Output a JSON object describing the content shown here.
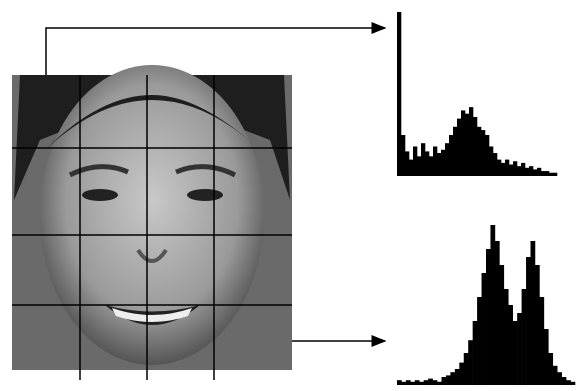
{
  "chart_data": [
    {
      "type": "histogram",
      "color": "#000000",
      "values": [
        100,
        25,
        15,
        10,
        18,
        12,
        20,
        15,
        12,
        18,
        14,
        16,
        20,
        25,
        30,
        35,
        40,
        38,
        42,
        36,
        30,
        28,
        25,
        18,
        14,
        10,
        8,
        10,
        7,
        9,
        6,
        8,
        5,
        6,
        4,
        5,
        3,
        3,
        2,
        2
      ]
    },
    {
      "type": "histogram",
      "color": "#000000",
      "values": [
        3,
        2,
        3,
        2,
        3,
        2,
        3,
        4,
        3,
        2,
        5,
        6,
        8,
        10,
        14,
        20,
        28,
        40,
        55,
        70,
        85,
        100,
        90,
        75,
        60,
        50,
        40,
        45,
        60,
        80,
        90,
        75,
        55,
        35,
        20,
        12,
        8,
        5,
        3,
        2
      ]
    }
  ]
}
